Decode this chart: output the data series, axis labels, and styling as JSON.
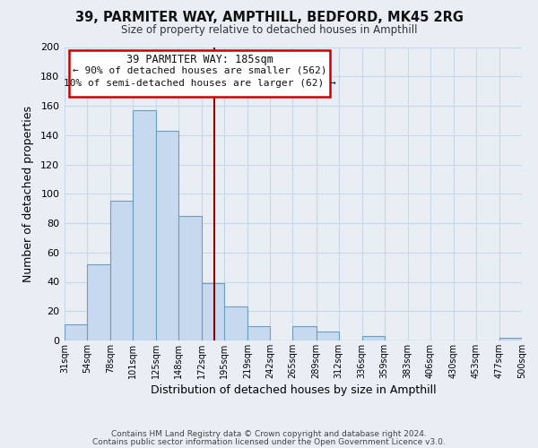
{
  "title_line1": "39, PARMITER WAY, AMPTHILL, BEDFORD, MK45 2RG",
  "title_line2": "Size of property relative to detached houses in Ampthill",
  "xlabel": "Distribution of detached houses by size in Ampthill",
  "ylabel": "Number of detached properties",
  "bar_edges": [
    31,
    54,
    78,
    101,
    125,
    148,
    172,
    195,
    219,
    242,
    265,
    289,
    312,
    336,
    359,
    383,
    406,
    430,
    453,
    477,
    500
  ],
  "bar_heights": [
    11,
    52,
    95,
    157,
    143,
    85,
    39,
    23,
    10,
    0,
    10,
    6,
    0,
    3,
    0,
    0,
    0,
    0,
    0,
    2
  ],
  "bar_color": "#c6d9ee",
  "bar_edgecolor": "#6a9fc0",
  "grid_color": "#c8d8e8",
  "annotation_title": "39 PARMITER WAY: 185sqm",
  "annotation_line1": "← 90% of detached houses are smaller (562)",
  "annotation_line2": "10% of semi-detached houses are larger (62) →",
  "vline_x": 185,
  "vline_color": "#8b0000",
  "ylim": [
    0,
    200
  ],
  "yticks": [
    0,
    20,
    40,
    60,
    80,
    100,
    120,
    140,
    160,
    180,
    200
  ],
  "xtick_labels": [
    "31sqm",
    "54sqm",
    "78sqm",
    "101sqm",
    "125sqm",
    "148sqm",
    "172sqm",
    "195sqm",
    "219sqm",
    "242sqm",
    "265sqm",
    "289sqm",
    "312sqm",
    "336sqm",
    "359sqm",
    "383sqm",
    "406sqm",
    "430sqm",
    "453sqm",
    "477sqm",
    "500sqm"
  ],
  "footer_line1": "Contains HM Land Registry data © Crown copyright and database right 2024.",
  "footer_line2": "Contains public sector information licensed under the Open Government Licence v3.0.",
  "bg_color": "#e8eef4",
  "plot_bg_color": "#e8eef4"
}
